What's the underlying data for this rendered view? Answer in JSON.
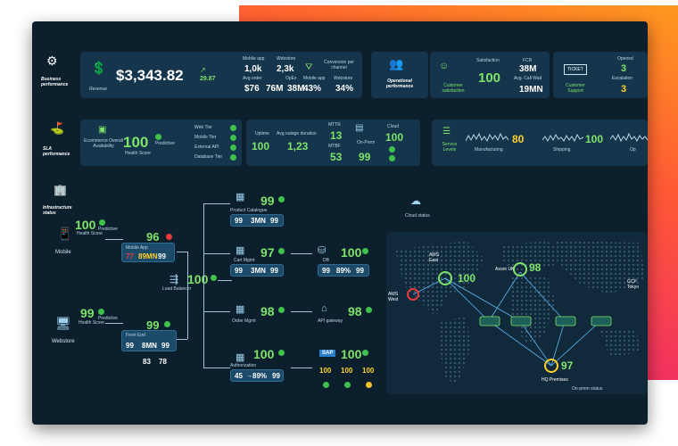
{
  "business": {
    "title": "Business performance",
    "revenue_value": "$3,343.82",
    "revenue_delta": "29.87",
    "revenue_label": "Revenue",
    "cols": [
      {
        "head": "Mobile app",
        "top": "1,0k",
        "bottom": "$76"
      },
      {
        "head": "Webstore",
        "top": "2,3k",
        "bottom": "38M"
      },
      {
        "head": "Avg order",
        "top": "",
        "bottom": "76M"
      },
      {
        "head": "OpEx",
        "top": "",
        "bottom": ""
      }
    ],
    "conversion_label": "Conversion per channel",
    "conv_mobile_label": "Mobile app",
    "conv_mobile_value": "43%",
    "conv_web_label": "Webstore",
    "conv_web_value": "34%"
  },
  "operational": {
    "title": "Operational performance",
    "satisfaction_head": "Satisfaction",
    "satisfaction_value": "100",
    "customer_satisfaction": "Customer satisfaction",
    "fcr_head": "FCR",
    "fcr_value": "38M",
    "avg_call_head": "Avg. Call Wait",
    "avg_call_value": "19MN",
    "ticket_label": "TICKET",
    "customer_support": "Customer Support",
    "opened_label": "Opened",
    "opened_value": "3",
    "escalation_label": "Escalation",
    "escalation_value": "3"
  },
  "sla": {
    "title": "SLA performance",
    "ecom_label": "Ecommerce Overall Availability",
    "health_value": "100",
    "predictive": "Predictive",
    "health_label": "Health Score",
    "tiers": [
      "Web Tier",
      "Mobile Tier",
      "External API",
      "Database Tier"
    ],
    "uptime_label": "Uptime",
    "uptime_value": "100",
    "outage_label": "Avg outage duration",
    "outage_value": "1,23",
    "mttr_label": "MTTR",
    "mttr_value": "13",
    "mtbf_label": "MTBF",
    "mtbf_value": "53",
    "cloud_label": "Cloud",
    "cloud_value": "100",
    "onprem_label": "On-Prem",
    "onprem_value": "99",
    "service_levels": "Service Levels",
    "manufacturing_label": "Manufacturing",
    "manufacturing_value": "80",
    "shipping_label": "Shipping",
    "shipping_value": "100",
    "ops_label": "Op"
  },
  "infra": {
    "title": "Infrastructure status",
    "mobile": {
      "label": "Mobile",
      "value": "100",
      "sub": "Health Score",
      "pred": "Predictive"
    },
    "webstore": {
      "label": "Webstore",
      "value": "99",
      "sub": "Health Score",
      "pred": "Predictive"
    },
    "mobile_app": {
      "label": "Mobile App",
      "value": "96",
      "a": "77",
      "b": "89MN",
      "c": "99"
    },
    "front_end": {
      "label": "Front End",
      "value": "99",
      "a": "99",
      "b": "8MN",
      "c": "99",
      "d": "83",
      "e": "78"
    },
    "load_balancer": {
      "label": "Load Balancer",
      "value": "100"
    },
    "product_catalogue": {
      "label": "Product Catalogue",
      "value": "99",
      "a": "99",
      "b": "3MN",
      "c": "99"
    },
    "cart_mgmt": {
      "label": "Cart Mgmt",
      "value": "97",
      "a": "99",
      "b": "3MN",
      "c": "99"
    },
    "order_mgmt": {
      "label": "Order Mgmt",
      "value": "98"
    },
    "authorization": {
      "label": "Authorization",
      "value": "100",
      "a": "45",
      "b": "89%",
      "c": "99"
    },
    "db": {
      "label": "DB",
      "value": "100",
      "a": "99",
      "b": "89%",
      "c": "99"
    },
    "api_gateway": {
      "label": "API gateway",
      "value": "98"
    },
    "sap": {
      "value": "100",
      "a": "100",
      "b": "100",
      "c": "100"
    },
    "cloud_status": "Cloud status",
    "onprem_status": "On-prem status"
  },
  "map": {
    "regions": [
      {
        "name": "AWS East",
        "value": "100"
      },
      {
        "name": "AWS West",
        "value": ""
      },
      {
        "name": "Azure UK",
        "value": "98"
      },
      {
        "name": "GCP Tokyo",
        "value": ""
      },
      {
        "name": "HQ Premises",
        "value": "97"
      }
    ]
  },
  "colors": {
    "accent": "#7fe36a",
    "warn": "#ffd12a",
    "alert": "#e53b3b",
    "bg": "#0c1f2c"
  }
}
